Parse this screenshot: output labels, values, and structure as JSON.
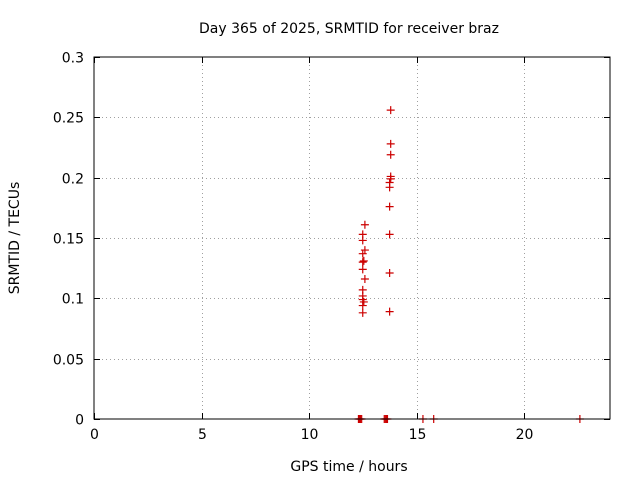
{
  "chart_data": {
    "type": "scatter",
    "title": "Day 365 of 2025, SRMTID for receiver braz",
    "xlabel": "GPS time / hours",
    "ylabel": "SRMTID / TECUs",
    "xlim": [
      0,
      24
    ],
    "ylim": [
      0,
      0.3
    ],
    "x_ticks": [
      0,
      5,
      10,
      15,
      20
    ],
    "x_tick_labels": [
      "0",
      "5",
      "10",
      "15",
      "20"
    ],
    "y_ticks": [
      0,
      0.05,
      0.1,
      0.15,
      0.2,
      0.25,
      0.3
    ],
    "y_tick_labels": [
      "0",
      "0.05",
      "0.1",
      "0.15",
      "0.2",
      "0.25",
      "0.3"
    ],
    "grid": true,
    "marker": "+",
    "color": "#cc0000",
    "series": [
      {
        "name": "SRMTID",
        "points": [
          [
            12.5,
            0.088
          ],
          [
            12.5,
            0.094
          ],
          [
            12.5,
            0.099
          ],
          [
            12.5,
            0.102
          ],
          [
            12.5,
            0.107
          ],
          [
            12.5,
            0.124
          ],
          [
            12.5,
            0.13
          ],
          [
            12.5,
            0.137
          ],
          [
            12.5,
            0.148
          ],
          [
            12.5,
            0.153
          ],
          [
            12.55,
            0.097
          ],
          [
            12.55,
            0.131
          ],
          [
            12.6,
            0.116
          ],
          [
            12.6,
            0.14
          ],
          [
            12.6,
            0.161
          ],
          [
            13.75,
            0.089
          ],
          [
            13.75,
            0.121
          ],
          [
            13.75,
            0.153
          ],
          [
            13.75,
            0.176
          ],
          [
            13.75,
            0.192
          ],
          [
            13.75,
            0.196
          ],
          [
            13.8,
            0.199
          ],
          [
            13.8,
            0.201
          ],
          [
            13.8,
            0.219
          ],
          [
            13.8,
            0.228
          ],
          [
            13.8,
            0.256
          ],
          [
            12.3,
            0.0
          ],
          [
            12.35,
            0.0
          ],
          [
            12.4,
            0.0
          ],
          [
            12.45,
            0.0
          ],
          [
            13.5,
            0.0
          ],
          [
            13.55,
            0.0
          ],
          [
            13.6,
            0.0
          ],
          [
            13.65,
            0.0
          ],
          [
            15.3,
            0.0
          ],
          [
            15.8,
            0.0
          ],
          [
            22.6,
            0.0
          ]
        ]
      }
    ]
  }
}
